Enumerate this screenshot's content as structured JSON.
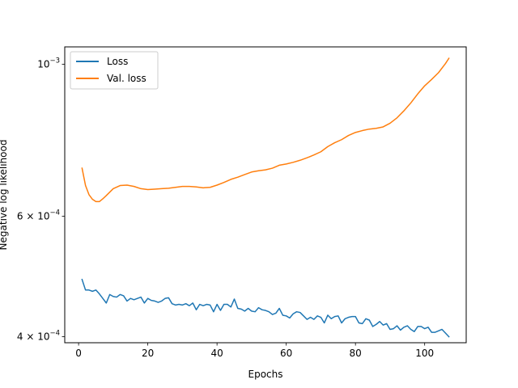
{
  "chart_data": {
    "type": "line",
    "title": "",
    "xlabel": "Epochs",
    "ylabel": "Negative log likelihood",
    "yscale": "log",
    "xlim": [
      -4,
      112
    ],
    "ylim": [
      0.000392,
      0.00106
    ],
    "grid": false,
    "legend_position": "top-left",
    "x_ticks": [
      {
        "value": 0,
        "label": "0"
      },
      {
        "value": 20,
        "label": "20"
      },
      {
        "value": 40,
        "label": "40"
      },
      {
        "value": 60,
        "label": "60"
      },
      {
        "value": 80,
        "label": "80"
      },
      {
        "value": 100,
        "label": "100"
      }
    ],
    "y_ticks": [
      {
        "value": 0.0004,
        "base": "4 × 10",
        "exp": "−4"
      },
      {
        "value": 0.0006,
        "base": "6 × 10",
        "exp": "−4"
      },
      {
        "value": 0.001,
        "base": "10",
        "exp": "−3"
      }
    ],
    "series": [
      {
        "name": "Loss",
        "color": "#1f77b4",
        "x": [
          1,
          2,
          3,
          4,
          5,
          6,
          7,
          8,
          9,
          10,
          11,
          12,
          13,
          14,
          15,
          16,
          17,
          18,
          19,
          20,
          21,
          22,
          23,
          24,
          25,
          26,
          27,
          28,
          29,
          30,
          31,
          32,
          33,
          34,
          35,
          36,
          37,
          38,
          39,
          40,
          41,
          42,
          43,
          44,
          45,
          46,
          47,
          48,
          49,
          50,
          51,
          52,
          53,
          54,
          55,
          56,
          57,
          58,
          59,
          60,
          61,
          62,
          63,
          64,
          65,
          66,
          67,
          68,
          69,
          70,
          71,
          72,
          73,
          74,
          75,
          76,
          77,
          78,
          79,
          80,
          81,
          82,
          83,
          84,
          85,
          86,
          87,
          88,
          89,
          90,
          91,
          92,
          93,
          94,
          95,
          96,
          97,
          98,
          99,
          100,
          101,
          102,
          103,
          104,
          105,
          106,
          107
        ],
        "y": [
          0.000485,
          0.000468,
          0.000468,
          0.000466,
          0.000468,
          0.000462,
          0.000455,
          0.000448,
          0.000461,
          0.000458,
          0.000457,
          0.000461,
          0.000459,
          0.000451,
          0.000455,
          0.000453,
          0.000455,
          0.000457,
          0.000448,
          0.000455,
          0.000452,
          0.000451,
          0.000449,
          0.000451,
          0.000455,
          0.000456,
          0.000447,
          0.000445,
          0.000446,
          0.000445,
          0.000447,
          0.000444,
          0.000448,
          0.000438,
          0.000446,
          0.000444,
          0.000446,
          0.000445,
          0.000435,
          0.000446,
          0.000437,
          0.000446,
          0.000446,
          0.000442,
          0.000454,
          0.00044,
          0.000439,
          0.000436,
          0.00044,
          0.000436,
          0.000435,
          0.000441,
          0.000438,
          0.000437,
          0.000435,
          0.000431,
          0.000433,
          0.00044,
          0.00043,
          0.000429,
          0.000426,
          0.000432,
          0.000435,
          0.000434,
          0.000429,
          0.000424,
          0.000427,
          0.000424,
          0.000429,
          0.000427,
          0.000419,
          0.00043,
          0.000425,
          0.000428,
          0.000429,
          0.000419,
          0.000425,
          0.000427,
          0.000428,
          0.000428,
          0.000419,
          0.000418,
          0.000425,
          0.000423,
          0.000414,
          0.000417,
          0.000421,
          0.000416,
          0.000418,
          0.00041,
          0.000411,
          0.000415,
          0.000409,
          0.000413,
          0.000415,
          0.00041,
          0.000407,
          0.000414,
          0.000414,
          0.000411,
          0.000413,
          0.000406,
          0.000406,
          0.000408,
          0.00041,
          0.000405,
          0.0004
        ]
      },
      {
        "name": "Val. loss",
        "color": "#ff7f0e",
        "x": [
          1,
          2,
          3,
          4,
          5,
          6,
          7,
          8,
          10,
          12,
          14,
          16,
          18,
          20,
          22,
          24,
          26,
          28,
          30,
          32,
          34,
          36,
          38,
          40,
          42,
          44,
          46,
          48,
          50,
          52,
          54,
          56,
          58,
          60,
          62,
          64,
          66,
          68,
          70,
          72,
          74,
          76,
          78,
          80,
          82,
          84,
          86,
          88,
          90,
          92,
          94,
          96,
          98,
          100,
          102,
          104,
          106,
          107
        ],
        "y": [
          0.000705,
          0.000665,
          0.000645,
          0.000635,
          0.00063,
          0.00063,
          0.000636,
          0.000643,
          0.000658,
          0.000665,
          0.000666,
          0.000663,
          0.000658,
          0.000656,
          0.000657,
          0.000658,
          0.000659,
          0.000661,
          0.000663,
          0.000663,
          0.000662,
          0.00066,
          0.000661,
          0.000666,
          0.000672,
          0.000679,
          0.000684,
          0.00069,
          0.000696,
          0.000699,
          0.000701,
          0.000705,
          0.000712,
          0.000715,
          0.000719,
          0.000724,
          0.00073,
          0.000737,
          0.000745,
          0.000758,
          0.000768,
          0.000776,
          0.000787,
          0.000795,
          0.0008,
          0.000804,
          0.000806,
          0.00081,
          0.00082,
          0.000835,
          0.000855,
          0.000878,
          0.000905,
          0.00093,
          0.00095,
          0.000972,
          0.001002,
          0.00102
        ]
      }
    ]
  }
}
